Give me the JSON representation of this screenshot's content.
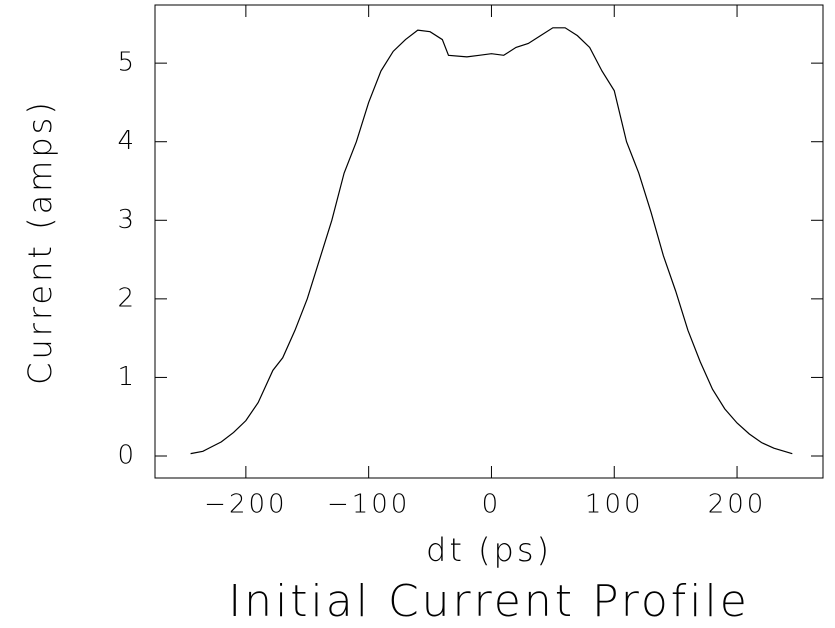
{
  "chart_data": {
    "type": "line",
    "title": "Initial Current Profile",
    "xlabel": "dt (ps)",
    "ylabel": "Current (amps)",
    "x": [
      -245,
      -235,
      -230,
      -220,
      -210,
      -200,
      -190,
      -178,
      -170,
      -160,
      -150,
      -140,
      -130,
      -120,
      -110,
      -100,
      -90,
      -80,
      -70,
      -60,
      -50,
      -40,
      -35,
      -20,
      -10,
      0,
      10,
      20,
      30,
      40,
      50,
      60,
      70,
      80,
      90,
      100,
      110,
      120,
      130,
      140,
      150,
      160,
      170,
      180,
      190,
      200,
      210,
      220,
      230,
      245
    ],
    "values": [
      0.03,
      0.06,
      0.1,
      0.18,
      0.3,
      0.45,
      0.68,
      1.09,
      1.25,
      1.6,
      2.0,
      2.5,
      3.0,
      3.6,
      4.0,
      4.5,
      4.9,
      5.15,
      5.3,
      5.42,
      5.4,
      5.3,
      5.1,
      5.08,
      5.1,
      5.12,
      5.1,
      5.2,
      5.25,
      5.35,
      5.45,
      5.45,
      5.35,
      5.2,
      4.9,
      4.65,
      4.0,
      3.6,
      3.1,
      2.55,
      2.1,
      1.6,
      1.2,
      0.85,
      0.6,
      0.42,
      0.28,
      0.17,
      0.1,
      0.03
    ],
    "color": "#000000",
    "xlim": [
      -274,
      270
    ],
    "ylim": [
      -0.28,
      5.74
    ],
    "xticks": [
      {
        "value": -200,
        "label": "−200"
      },
      {
        "value": -100,
        "label": "−100"
      },
      0,
      100,
      200
    ],
    "yticks": [
      0,
      1,
      2,
      3,
      4,
      5
    ]
  }
}
